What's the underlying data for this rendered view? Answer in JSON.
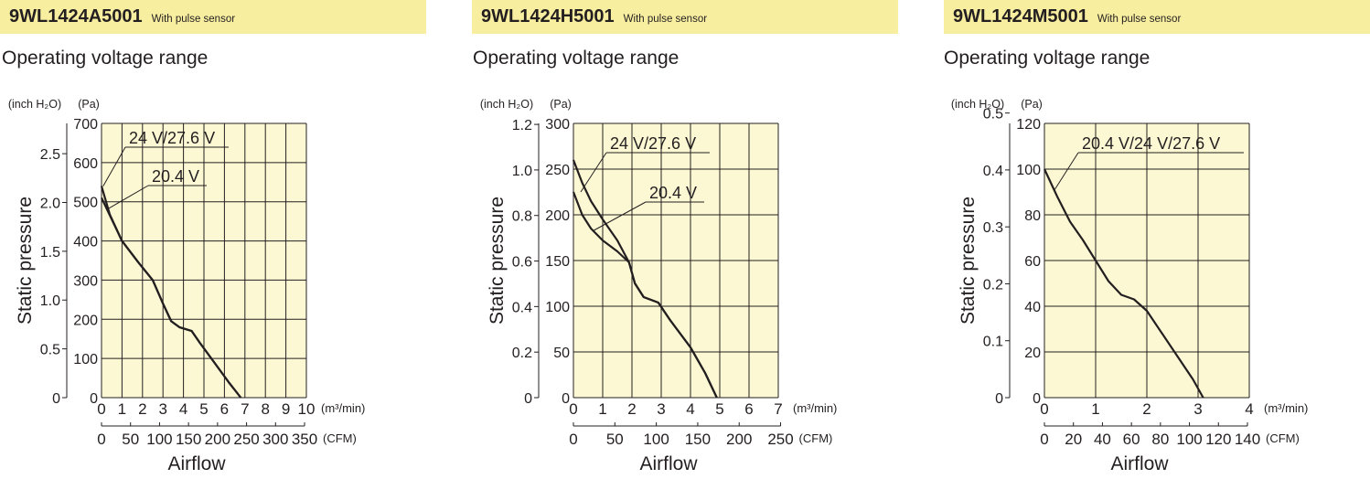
{
  "panels": [
    {
      "model": "9WL1424A5001",
      "note": "With pulse sensor",
      "section_title": "Operating voltage range",
      "chart_data": {
        "type": "line",
        "ylabel": "Static pressure",
        "xlabel": "Airflow",
        "y_unit_primary": "(Pa)",
        "y_unit_secondary": "(inch H₂O)",
        "x_unit_primary": "(m³/min)",
        "x_unit_secondary": "(CFM)",
        "ylim": [
          0,
          700
        ],
        "yticks": [
          0,
          100,
          200,
          300,
          400,
          500,
          600,
          700
        ],
        "yticks_secondary": [
          0,
          0.5,
          1.0,
          1.5,
          2.0,
          2.5
        ],
        "yticks_secondary_labels": [
          "0",
          "0.5",
          "1.0",
          "1.5",
          "2.0",
          "2.5"
        ],
        "xlim": [
          0,
          10
        ],
        "xticks": [
          0,
          1,
          2,
          3,
          4,
          5,
          6,
          7,
          8,
          9,
          10
        ],
        "xticks_secondary": [
          0,
          50,
          100,
          150,
          200,
          250,
          300,
          350
        ],
        "grid": true,
        "background": "#fcf8d4",
        "series": [
          {
            "name": "24 V/27.6 V",
            "points": [
              [
                0,
                540
              ],
              [
                0.4,
                468
              ],
              [
                1,
                400
              ],
              [
                1.8,
                345
              ],
              [
                2.5,
                300
              ],
              [
                3,
                240
              ],
              [
                3.4,
                195
              ],
              [
                3.8,
                180
              ],
              [
                4.4,
                170
              ],
              [
                4.8,
                140
              ],
              [
                5.5,
                90
              ],
              [
                6.2,
                40
              ],
              [
                6.8,
                0
              ]
            ]
          },
          {
            "name": "20.4 V",
            "points": [
              [
                0,
                510
              ],
              [
                0.5,
                455
              ],
              [
                1,
                400
              ],
              [
                1.8,
                345
              ],
              [
                2.5,
                300
              ],
              [
                3,
                240
              ],
              [
                3.4,
                195
              ],
              [
                3.8,
                180
              ],
              [
                4.4,
                170
              ],
              [
                4.8,
                140
              ],
              [
                5.5,
                90
              ],
              [
                6.2,
                40
              ],
              [
                6.8,
                0
              ]
            ]
          }
        ]
      }
    },
    {
      "model": "9WL1424H5001",
      "note": "With pulse sensor",
      "section_title": "Operating voltage range",
      "chart_data": {
        "type": "line",
        "ylabel": "Static pressure",
        "xlabel": "Airflow",
        "y_unit_primary": "(Pa)",
        "y_unit_secondary": "(inch H₂O)",
        "x_unit_primary": "(m³/min)",
        "x_unit_secondary": "(CFM)",
        "ylim": [
          0,
          300
        ],
        "yticks": [
          0,
          50,
          100,
          150,
          200,
          250,
          300
        ],
        "yticks_secondary": [
          0,
          0.2,
          0.4,
          0.6,
          0.8,
          1.0,
          1.2
        ],
        "yticks_secondary_labels": [
          "0",
          "0.2",
          "0.4",
          "0.6",
          "0.8",
          "1.0",
          "1.2"
        ],
        "xlim": [
          0,
          7
        ],
        "xticks": [
          0,
          1,
          2,
          3,
          4,
          5,
          6,
          7
        ],
        "xticks_secondary": [
          0,
          50,
          100,
          150,
          200,
          250
        ],
        "grid": true,
        "background": "#fcf8d4",
        "series": [
          {
            "name": "24 V/27.6 V",
            "points": [
              [
                0,
                260
              ],
              [
                0.3,
                235
              ],
              [
                0.6,
                215
              ],
              [
                1,
                195
              ],
              [
                1.5,
                172
              ],
              [
                1.9,
                148
              ],
              [
                2.1,
                125
              ],
              [
                2.4,
                110
              ],
              [
                2.9,
                104
              ],
              [
                3.3,
                85
              ],
              [
                4,
                55
              ],
              [
                4.5,
                27
              ],
              [
                4.9,
                0
              ]
            ]
          },
          {
            "name": "20.4 V",
            "points": [
              [
                0,
                225
              ],
              [
                0.3,
                200
              ],
              [
                0.6,
                185
              ],
              [
                1,
                172
              ],
              [
                1.5,
                160
              ],
              [
                1.9,
                148
              ],
              [
                2.1,
                125
              ],
              [
                2.4,
                110
              ],
              [
                2.9,
                104
              ],
              [
                3.3,
                85
              ],
              [
                4,
                55
              ],
              [
                4.5,
                27
              ],
              [
                4.9,
                0
              ]
            ]
          }
        ]
      }
    },
    {
      "model": "9WL1424M5001",
      "note": "With pulse sensor",
      "section_title": "Operating voltage range",
      "chart_data": {
        "type": "line",
        "ylabel": "Static pressure",
        "xlabel": "Airflow",
        "y_unit_primary": "(Pa)",
        "y_unit_secondary": "(inch H₂O)",
        "x_unit_primary": "(m³/min)",
        "x_unit_secondary": "(CFM)",
        "ylim": [
          0,
          120
        ],
        "yticks": [
          0,
          20,
          40,
          60,
          80,
          100,
          120
        ],
        "yticks_secondary": [
          0,
          0.1,
          0.2,
          0.3,
          0.4,
          0.5
        ],
        "yticks_secondary_labels": [
          "0",
          "0.1",
          "0.2",
          "0.3",
          "0.4",
          "0.5"
        ],
        "xlim": [
          0,
          4
        ],
        "xticks": [
          0,
          1,
          2,
          3,
          4
        ],
        "xticks_secondary": [
          0,
          20,
          40,
          60,
          80,
          100,
          120,
          140
        ],
        "grid": true,
        "background": "#fcf8d4",
        "series": [
          {
            "name": "20.4 V/24 V/27.6 V",
            "points": [
              [
                0,
                100
              ],
              [
                0.25,
                88
              ],
              [
                0.5,
                77
              ],
              [
                0.75,
                69
              ],
              [
                1,
                60
              ],
              [
                1.25,
                51
              ],
              [
                1.5,
                45
              ],
              [
                1.75,
                43
              ],
              [
                2,
                38
              ],
              [
                2.3,
                28
              ],
              [
                2.6,
                18
              ],
              [
                2.9,
                8
              ],
              [
                3.1,
                0
              ]
            ]
          }
        ]
      }
    }
  ]
}
